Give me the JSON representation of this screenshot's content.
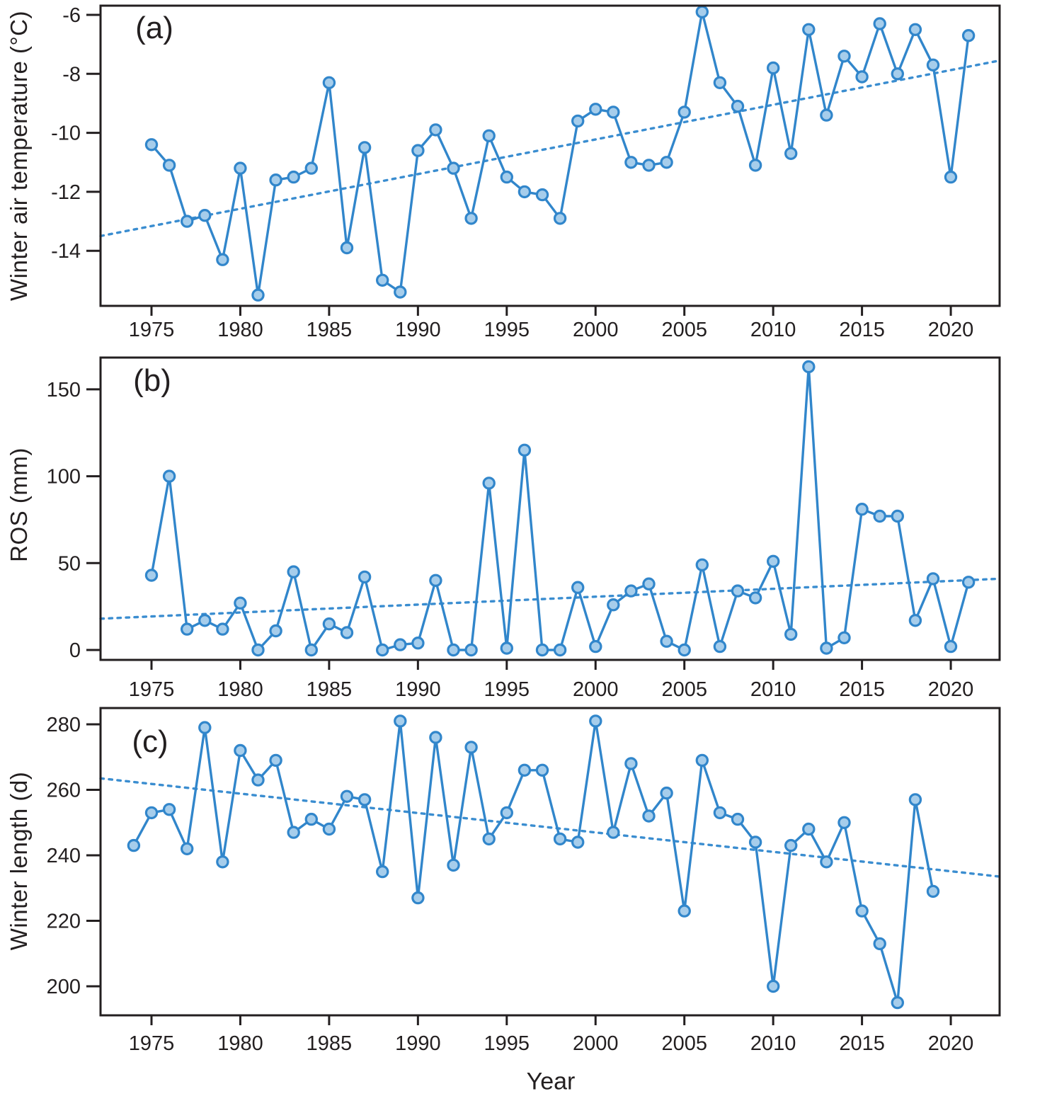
{
  "figure": {
    "xlabel": "Year",
    "panels": [
      {
        "letter": "(a)",
        "ylabel": "Winter air temperature (°C)"
      },
      {
        "letter": "(b)",
        "ylabel": "ROS (mm)"
      },
      {
        "letter": "(c)",
        "ylabel": "Winter length (d)"
      }
    ]
  },
  "colors": {
    "line": "#3186cb",
    "marker_fill": "#a6cdeb",
    "marker_stroke": "#3186cb",
    "trend": "#3a8dd0",
    "axis": "#231f20",
    "text": "#231f20",
    "background": "#ffffff"
  },
  "chart_data": [
    {
      "type": "line",
      "panel": "(a)",
      "title": "",
      "xlabel": "",
      "ylabel": "Winter air temperature (°C)",
      "legend": "none",
      "grid": false,
      "marker": "circle",
      "trend_line": "dotted, rising",
      "xlim": [
        1972.1,
        2022.9
      ],
      "ylim": [
        -15.9,
        -5.7
      ],
      "xticks": [
        1975,
        1980,
        1985,
        1990,
        1995,
        2000,
        2005,
        2010,
        2015,
        2020
      ],
      "yticks": [
        -6,
        -8,
        -10,
        -12,
        -14
      ],
      "x": [
        1975,
        1976,
        1977,
        1978,
        1979,
        1980,
        1981,
        1982,
        1983,
        1984,
        1985,
        1986,
        1987,
        1988,
        1989,
        1990,
        1991,
        1992,
        1993,
        1994,
        1995,
        1996,
        1997,
        1998,
        1999,
        2000,
        2001,
        2002,
        2003,
        2004,
        2005,
        2006,
        2007,
        2008,
        2009,
        2010,
        2011,
        2012,
        2013,
        2014,
        2015,
        2016,
        2017,
        2018,
        2019,
        2020,
        2021
      ],
      "values": [
        -10.4,
        -11.1,
        -13.0,
        -12.8,
        -14.3,
        -11.2,
        -15.5,
        -11.6,
        -11.5,
        -11.2,
        -8.3,
        -13.9,
        -10.5,
        -15.0,
        -15.4,
        -10.6,
        -9.9,
        -11.2,
        -12.9,
        -10.1,
        -11.5,
        -12.0,
        -12.1,
        -12.9,
        -9.6,
        -9.2,
        -9.3,
        -11.0,
        -11.1,
        -11.0,
        -9.3,
        -5.9,
        -8.3,
        -9.1,
        -11.1,
        -7.8,
        -10.7,
        -6.5,
        -9.4,
        -7.4,
        -8.1,
        -6.3,
        -8.0,
        -6.5,
        -7.7,
        -11.5,
        -6.7
      ],
      "trend": {
        "x": [
          1972.1,
          2022.9
        ],
        "y": [
          -13.5,
          -7.55
        ]
      }
    },
    {
      "type": "line",
      "panel": "(b)",
      "title": "",
      "xlabel": "",
      "ylabel": "ROS (mm)",
      "legend": "none",
      "grid": false,
      "marker": "circle",
      "trend_line": "dotted, slightly rising",
      "xlim": [
        1972.1,
        2022.9
      ],
      "ylim": [
        -5.7,
        168
      ],
      "xticks": [
        1975,
        1980,
        1985,
        1990,
        1995,
        2000,
        2005,
        2010,
        2015,
        2020
      ],
      "yticks": [
        0,
        50,
        100,
        150
      ],
      "x": [
        1975,
        1976,
        1977,
        1978,
        1979,
        1980,
        1981,
        1982,
        1983,
        1984,
        1985,
        1986,
        1987,
        1988,
        1989,
        1990,
        1991,
        1992,
        1993,
        1994,
        1995,
        1996,
        1997,
        1998,
        1999,
        2000,
        2001,
        2002,
        2003,
        2004,
        2005,
        2006,
        2007,
        2008,
        2009,
        2010,
        2011,
        2012,
        2013,
        2014,
        2015,
        2016,
        2017,
        2018,
        2019,
        2020,
        2021
      ],
      "values": [
        43,
        100,
        12,
        17,
        12,
        27,
        0,
        11,
        45,
        0,
        15,
        10,
        42,
        0,
        3,
        4,
        40,
        0,
        0,
        96,
        1,
        115,
        0,
        0,
        36,
        2,
        26,
        34,
        38,
        5,
        0,
        49,
        2,
        34,
        30,
        51,
        9,
        163,
        1,
        7,
        81,
        77,
        77,
        17,
        41,
        2,
        39
      ],
      "trend": {
        "x": [
          1972.1,
          2022.9
        ],
        "y": [
          18,
          41
        ]
      }
    },
    {
      "type": "line",
      "panel": "(c)",
      "title": "",
      "xlabel": "Year",
      "ylabel": "Winter length (d)",
      "legend": "none",
      "grid": false,
      "marker": "circle",
      "trend_line": "dotted, falling",
      "xlim": [
        1972.1,
        2022.9
      ],
      "ylim": [
        191,
        285
      ],
      "xticks": [
        1975,
        1980,
        1985,
        1990,
        1995,
        2000,
        2005,
        2010,
        2015,
        2020
      ],
      "yticks": [
        200,
        220,
        240,
        260,
        280
      ],
      "x": [
        1974,
        1975,
        1976,
        1977,
        1978,
        1979,
        1980,
        1981,
        1982,
        1983,
        1984,
        1985,
        1986,
        1987,
        1988,
        1989,
        1990,
        1991,
        1992,
        1993,
        1994,
        1995,
        1996,
        1997,
        1998,
        1999,
        2000,
        2001,
        2002,
        2003,
        2004,
        2005,
        2006,
        2007,
        2008,
        2009,
        2010,
        2011,
        2012,
        2013,
        2014,
        2015,
        2016,
        2017,
        2018,
        2019
      ],
      "values": [
        243,
        253,
        254,
        242,
        279,
        238,
        272,
        263,
        269,
        247,
        251,
        248,
        258,
        257,
        235,
        281,
        227,
        276,
        237,
        273,
        245,
        253,
        266,
        266,
        245,
        244,
        281,
        247,
        268,
        252,
        259,
        223,
        269,
        253,
        251,
        244,
        200,
        243,
        248,
        238,
        250,
        223,
        213,
        195,
        257,
        229
      ],
      "trend": {
        "x": [
          1972.1,
          2022.9
        ],
        "y": [
          263.5,
          233.5
        ]
      }
    }
  ]
}
